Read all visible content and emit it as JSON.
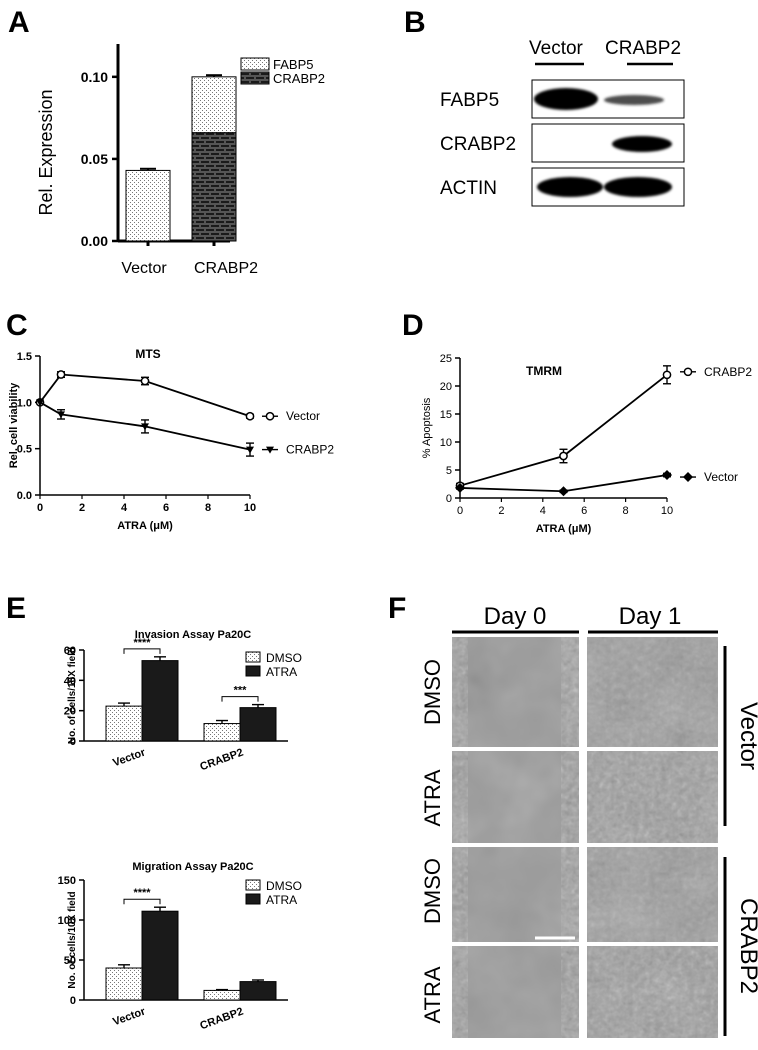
{
  "panels": {
    "A": {
      "letter": "A"
    },
    "B": {
      "letter": "B",
      "columns": [
        "Vector",
        "CRABP2"
      ],
      "rows": [
        "FABP5",
        "CRABP2",
        "ACTIN"
      ]
    },
    "C": {
      "letter": "C"
    },
    "D": {
      "letter": "D"
    },
    "E": {
      "letter": "E"
    },
    "F": {
      "letter": "F",
      "columns": [
        "Day 0",
        "Day 1"
      ],
      "rows": [
        "DMSO",
        "ATRA",
        "DMSO",
        "ATRA"
      ],
      "groups": [
        "Vector",
        "CRABP2"
      ]
    }
  },
  "chart_data": [
    {
      "id": "A",
      "type": "bar",
      "stacked": true,
      "categories": [
        "Vector",
        "CRABP2"
      ],
      "series": [
        {
          "name": "FABP5",
          "values": [
            0.043,
            0.034
          ],
          "errors": [
            0.001,
            0.001
          ],
          "pattern": "dots"
        },
        {
          "name": "CRABP2",
          "values": [
            0,
            0.066
          ],
          "errors": [
            0,
            0.001
          ],
          "pattern": "bricks"
        }
      ],
      "title": "",
      "xlabel": "",
      "ylabel": "Rel. Expression",
      "ylim": [
        0,
        0.12
      ],
      "yticks": [
        "0.00",
        "0.05",
        "0.10"
      ],
      "legend": "top-right"
    },
    {
      "id": "C",
      "type": "line",
      "title": "MTS",
      "xlabel": "ATRA (μM)",
      "ylabel": "Rel. cell viability",
      "xlim": [
        0,
        10
      ],
      "ylim": [
        0,
        1.5
      ],
      "xticks": [
        "0",
        "2",
        "4",
        "6",
        "8",
        "10"
      ],
      "yticks": [
        "0.0",
        "0.5",
        "1.0",
        "1.5"
      ],
      "series": [
        {
          "name": "Vector",
          "x": [
            0,
            1,
            5,
            10
          ],
          "y": [
            1.0,
            1.3,
            1.23,
            0.85
          ],
          "errors": [
            0,
            0.03,
            0.04,
            0.02
          ],
          "marker": "open-circle"
        },
        {
          "name": "CRABP2",
          "x": [
            0,
            1,
            5,
            10
          ],
          "y": [
            1.0,
            0.87,
            0.74,
            0.49
          ],
          "errors": [
            0,
            0.05,
            0.07,
            0.07
          ],
          "marker": "triangle-down"
        }
      ],
      "legend": "right"
    },
    {
      "id": "D",
      "type": "line",
      "title": "TMRM",
      "xlabel": "ATRA (μM)",
      "ylabel": "% Apoptosis",
      "xlim": [
        0,
        10
      ],
      "ylim": [
        0,
        25
      ],
      "xticks": [
        "0",
        "2",
        "4",
        "6",
        "8",
        "10"
      ],
      "yticks": [
        "0",
        "5",
        "10",
        "15",
        "20",
        "25"
      ],
      "series": [
        {
          "name": "CRABP2",
          "x": [
            0,
            5,
            10
          ],
          "y": [
            2.2,
            7.5,
            22.0
          ],
          "errors": [
            0.4,
            1.2,
            1.6
          ],
          "marker": "open-circle"
        },
        {
          "name": "Vector",
          "x": [
            0,
            5,
            10
          ],
          "y": [
            1.8,
            1.2,
            4.1
          ],
          "errors": [
            0.2,
            0.2,
            0.3
          ],
          "marker": "diamond"
        }
      ],
      "legend": "right"
    },
    {
      "id": "E1",
      "type": "bar",
      "title": "Invasion Assay Pa20C",
      "xlabel": "",
      "ylabel": "No. of cells/10X field",
      "categories": [
        "Vector",
        "CRABP2"
      ],
      "ylim": [
        0,
        60
      ],
      "yticks": [
        "0",
        "20",
        "40",
        "60"
      ],
      "series": [
        {
          "name": "DMSO",
          "values": [
            23,
            11.5
          ],
          "errors": [
            2,
            2
          ],
          "pattern": "dots"
        },
        {
          "name": "ATRA",
          "values": [
            53,
            22
          ],
          "errors": [
            2.5,
            2
          ],
          "pattern": "solid"
        }
      ],
      "significance": [
        {
          "category": "Vector",
          "label": "****"
        },
        {
          "category": "CRABP2",
          "label": "***"
        }
      ],
      "legend": "top-right"
    },
    {
      "id": "E2",
      "type": "bar",
      "title": "Migration Assay Pa20C",
      "xlabel": "",
      "ylabel": "No. of cells/10X field",
      "categories": [
        "Vector",
        "CRABP2"
      ],
      "ylim": [
        0,
        150
      ],
      "yticks": [
        "0",
        "50",
        "100",
        "150"
      ],
      "series": [
        {
          "name": "DMSO",
          "values": [
            40,
            12
          ],
          "errors": [
            4,
            1
          ],
          "pattern": "dots"
        },
        {
          "name": "ATRA",
          "values": [
            111,
            23
          ],
          "errors": [
            5,
            2
          ],
          "pattern": "solid"
        }
      ],
      "significance": [
        {
          "category": "Vector",
          "label": "****"
        }
      ],
      "legend": "top-right"
    }
  ]
}
